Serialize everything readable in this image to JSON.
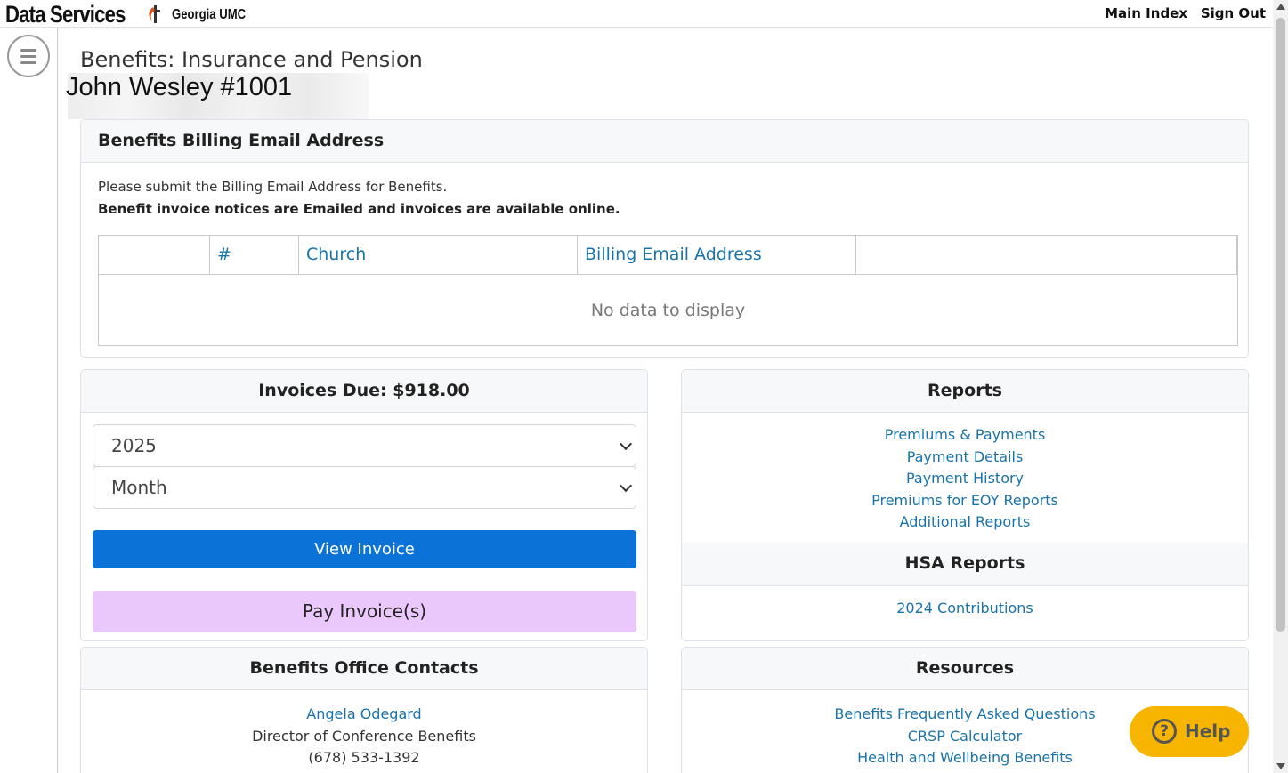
{
  "header": {
    "brand": "Data Services",
    "sub_brand": "Georgia UMC",
    "links": [
      "Main Index",
      "Sign Out"
    ]
  },
  "page": {
    "title": "Benefits: Insurance and Pension",
    "member": "John Wesley #1001"
  },
  "billing": {
    "title": "Benefits Billing Email Address",
    "line1": "Please submit the Billing Email Address for Benefits.",
    "line2": "Benefit invoice notices are Emailed and invoices are available online.",
    "columns": [
      "",
      "#",
      "Church",
      "Billing Email Address",
      ""
    ],
    "empty": "No data to display"
  },
  "invoices": {
    "title": "Invoices Due: $918.00",
    "year": "2025",
    "month": "Month",
    "view_label": "View Invoice",
    "pay_label": "Pay Invoice(s)"
  },
  "reports": {
    "title": "Reports",
    "links": [
      "Premiums & Payments",
      "Payment Details",
      "Payment History",
      "Premiums for EOY Reports",
      "Additional Reports"
    ],
    "hsa_title": "HSA Reports",
    "hsa_links": [
      "2024 Contributions"
    ]
  },
  "contacts": {
    "title": "Benefits Office Contacts",
    "name": "Angela Odegard",
    "role": "Director of Conference Benefits",
    "phone": "(678) 533-1392"
  },
  "resources": {
    "title": "Resources",
    "links": [
      "Benefits Frequently Asked Questions",
      "CRSP Calculator",
      "Health and Wellbeing Benefits"
    ]
  },
  "help": {
    "label": "Help"
  },
  "colors": {
    "primary_button": "#0b72d8",
    "pay_button": "#ebc8fb",
    "help_button": "#f7b500",
    "link": "#1a73a8"
  }
}
